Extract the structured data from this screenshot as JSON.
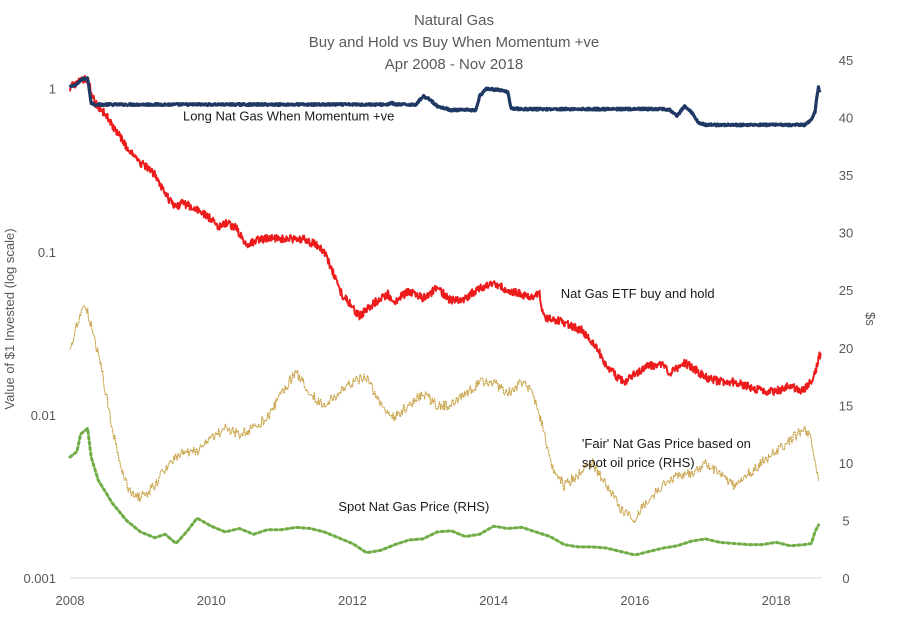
{
  "chart_data": {
    "type": "line",
    "title": [
      "Natural Gas",
      "Buy and Hold vs Buy When Momentum +ve",
      "Apr 2008 - Nov 2018"
    ],
    "xlabel": "",
    "ylabel_left": "Value of $1 Invested (log scale)",
    "ylabel_right": "$s",
    "x_ticks": [
      2008,
      2010,
      2012,
      2014,
      2016,
      2018
    ],
    "xlim": [
      2008,
      2018.65
    ],
    "y_left": {
      "scale": "log",
      "lim": [
        0.001,
        1.5
      ],
      "ticks": [
        0.001,
        0.01,
        0.1,
        1
      ],
      "tick_labels": [
        "0.001",
        "0.01",
        "0.1",
        "1"
      ]
    },
    "y_right": {
      "scale": "linear",
      "lim": [
        0,
        45
      ],
      "ticks": [
        0,
        5,
        10,
        15,
        20,
        25,
        30,
        35,
        40,
        45
      ],
      "tick_labels": [
        "0",
        "5",
        "10",
        "15",
        "20",
        "25",
        "30",
        "35",
        "40",
        "45"
      ]
    },
    "grid": false,
    "legend": "none",
    "series": [
      {
        "name": "Long Nat Gas When Momentum +ve",
        "axis": "left",
        "style": "solid",
        "color": "#1f3864",
        "width": 3.2,
        "noise": 0.012,
        "points": [
          [
            2008.0,
            1.02
          ],
          [
            2008.1,
            1.07
          ],
          [
            2008.18,
            1.15
          ],
          [
            2008.25,
            1.15
          ],
          [
            2008.3,
            0.82
          ],
          [
            2008.35,
            0.8
          ],
          [
            2009.0,
            0.8
          ],
          [
            2011.0,
            0.8
          ],
          [
            2012.5,
            0.8
          ],
          [
            2012.55,
            0.82
          ],
          [
            2012.6,
            0.8
          ],
          [
            2012.9,
            0.8
          ],
          [
            2013.0,
            0.9
          ],
          [
            2013.1,
            0.86
          ],
          [
            2013.2,
            0.78
          ],
          [
            2013.4,
            0.74
          ],
          [
            2013.75,
            0.74
          ],
          [
            2013.8,
            0.9
          ],
          [
            2013.9,
            1.0
          ],
          [
            2014.1,
            0.98
          ],
          [
            2014.2,
            0.95
          ],
          [
            2014.25,
            0.76
          ],
          [
            2014.4,
            0.75
          ],
          [
            2016.4,
            0.75
          ],
          [
            2016.5,
            0.74
          ],
          [
            2016.6,
            0.68
          ],
          [
            2016.7,
            0.78
          ],
          [
            2016.8,
            0.72
          ],
          [
            2016.9,
            0.62
          ],
          [
            2017.0,
            0.6
          ],
          [
            2018.0,
            0.6
          ],
          [
            2018.4,
            0.6
          ],
          [
            2018.45,
            0.62
          ],
          [
            2018.5,
            0.65
          ],
          [
            2018.55,
            0.72
          ],
          [
            2018.58,
            0.9
          ],
          [
            2018.6,
            1.02
          ],
          [
            2018.62,
            0.95
          ]
        ]
      },
      {
        "name": "Nat Gas ETF buy and hold",
        "axis": "left",
        "style": "solid",
        "color": "#ed1c1c",
        "width": 2.0,
        "noise": 0.05,
        "points": [
          [
            2008.0,
            1.02
          ],
          [
            2008.1,
            1.07
          ],
          [
            2008.18,
            1.15
          ],
          [
            2008.25,
            1.15
          ],
          [
            2008.35,
            0.82
          ],
          [
            2008.5,
            0.7
          ],
          [
            2008.65,
            0.55
          ],
          [
            2008.8,
            0.44
          ],
          [
            2009.0,
            0.35
          ],
          [
            2009.2,
            0.3
          ],
          [
            2009.3,
            0.25
          ],
          [
            2009.4,
            0.21
          ],
          [
            2009.5,
            0.19
          ],
          [
            2009.6,
            0.2
          ],
          [
            2009.8,
            0.18
          ],
          [
            2010.0,
            0.16
          ],
          [
            2010.1,
            0.14
          ],
          [
            2010.2,
            0.15
          ],
          [
            2010.35,
            0.14
          ],
          [
            2010.5,
            0.11
          ],
          [
            2010.7,
            0.12
          ],
          [
            2010.9,
            0.12
          ],
          [
            2011.0,
            0.12
          ],
          [
            2011.3,
            0.12
          ],
          [
            2011.5,
            0.11
          ],
          [
            2011.6,
            0.1
          ],
          [
            2011.75,
            0.07
          ],
          [
            2011.85,
            0.055
          ],
          [
            2012.0,
            0.046
          ],
          [
            2012.1,
            0.04
          ],
          [
            2012.2,
            0.045
          ],
          [
            2012.35,
            0.05
          ],
          [
            2012.5,
            0.055
          ],
          [
            2012.6,
            0.05
          ],
          [
            2012.8,
            0.057
          ],
          [
            2013.0,
            0.052
          ],
          [
            2013.2,
            0.06
          ],
          [
            2013.4,
            0.05
          ],
          [
            2013.6,
            0.052
          ],
          [
            2013.8,
            0.06
          ],
          [
            2014.0,
            0.064
          ],
          [
            2014.2,
            0.058
          ],
          [
            2014.4,
            0.055
          ],
          [
            2014.55,
            0.052
          ],
          [
            2014.65,
            0.057
          ],
          [
            2014.7,
            0.04
          ],
          [
            2014.9,
            0.038
          ],
          [
            2015.1,
            0.035
          ],
          [
            2015.25,
            0.033
          ],
          [
            2015.4,
            0.028
          ],
          [
            2015.5,
            0.024
          ],
          [
            2015.6,
            0.02
          ],
          [
            2015.75,
            0.017
          ],
          [
            2015.85,
            0.016
          ],
          [
            2016.0,
            0.018
          ],
          [
            2016.2,
            0.02
          ],
          [
            2016.4,
            0.02
          ],
          [
            2016.5,
            0.018
          ],
          [
            2016.7,
            0.021
          ],
          [
            2016.85,
            0.019
          ],
          [
            2017.0,
            0.017
          ],
          [
            2017.2,
            0.016
          ],
          [
            2017.4,
            0.016
          ],
          [
            2017.6,
            0.015
          ],
          [
            2017.8,
            0.014
          ],
          [
            2018.0,
            0.014
          ],
          [
            2018.2,
            0.015
          ],
          [
            2018.35,
            0.014
          ],
          [
            2018.45,
            0.015
          ],
          [
            2018.55,
            0.018
          ],
          [
            2018.6,
            0.022
          ],
          [
            2018.63,
            0.024
          ]
        ]
      },
      {
        "name": "'Fair' Nat Gas Price based on spot oil price (RHS)",
        "axis": "right",
        "style": "dotted",
        "color": "#c9a44a",
        "width": 1.2,
        "noise": 0.9,
        "points": [
          [
            2008.0,
            20
          ],
          [
            2008.1,
            22
          ],
          [
            2008.2,
            24
          ],
          [
            2008.3,
            22
          ],
          [
            2008.45,
            18
          ],
          [
            2008.6,
            13
          ],
          [
            2008.75,
            9
          ],
          [
            2008.85,
            7.5
          ],
          [
            2009.0,
            7
          ],
          [
            2009.2,
            8
          ],
          [
            2009.4,
            10
          ],
          [
            2009.6,
            11
          ],
          [
            2009.8,
            11
          ],
          [
            2010.0,
            12
          ],
          [
            2010.2,
            13
          ],
          [
            2010.4,
            12.5
          ],
          [
            2010.6,
            13
          ],
          [
            2010.8,
            14
          ],
          [
            2011.0,
            16
          ],
          [
            2011.2,
            18
          ],
          [
            2011.4,
            16
          ],
          [
            2011.6,
            15
          ],
          [
            2011.8,
            16
          ],
          [
            2012.0,
            17
          ],
          [
            2012.2,
            17.5
          ],
          [
            2012.4,
            15
          ],
          [
            2012.6,
            14
          ],
          [
            2012.8,
            15
          ],
          [
            2013.0,
            16
          ],
          [
            2013.2,
            15
          ],
          [
            2013.4,
            15
          ],
          [
            2013.6,
            16
          ],
          [
            2013.8,
            17
          ],
          [
            2014.0,
            17
          ],
          [
            2014.2,
            16
          ],
          [
            2014.4,
            17
          ],
          [
            2014.55,
            16
          ],
          [
            2014.7,
            13
          ],
          [
            2014.8,
            10
          ],
          [
            2014.9,
            9
          ],
          [
            2015.0,
            8
          ],
          [
            2015.2,
            9
          ],
          [
            2015.4,
            10
          ],
          [
            2015.6,
            8
          ],
          [
            2015.8,
            6
          ],
          [
            2016.0,
            5
          ],
          [
            2016.2,
            7
          ],
          [
            2016.4,
            8
          ],
          [
            2016.6,
            9
          ],
          [
            2016.8,
            9
          ],
          [
            2017.0,
            10
          ],
          [
            2017.2,
            9
          ],
          [
            2017.4,
            8
          ],
          [
            2017.6,
            9
          ],
          [
            2017.8,
            10
          ],
          [
            2018.0,
            11
          ],
          [
            2018.2,
            12
          ],
          [
            2018.4,
            13
          ],
          [
            2018.5,
            12
          ],
          [
            2018.6,
            8.5
          ]
        ]
      },
      {
        "name": "Spot Nat Gas Price (RHS)",
        "axis": "right",
        "style": "dotted",
        "color": "#70ad47",
        "width": 3.0,
        "noise": 0,
        "points": [
          [
            2008.0,
            10.5
          ],
          [
            2008.1,
            11
          ],
          [
            2008.15,
            12.5
          ],
          [
            2008.25,
            13
          ],
          [
            2008.3,
            10.5
          ],
          [
            2008.4,
            8.5
          ],
          [
            2008.5,
            7.5
          ],
          [
            2008.6,
            6.5
          ],
          [
            2008.8,
            5
          ],
          [
            2009.0,
            4
          ],
          [
            2009.2,
            3.5
          ],
          [
            2009.35,
            3.8
          ],
          [
            2009.5,
            3
          ],
          [
            2009.65,
            4
          ],
          [
            2009.8,
            5.2
          ],
          [
            2010.0,
            4.5
          ],
          [
            2010.2,
            4
          ],
          [
            2010.4,
            4.3
          ],
          [
            2010.6,
            3.8
          ],
          [
            2010.8,
            4.2
          ],
          [
            2011.0,
            4.2
          ],
          [
            2011.2,
            4.4
          ],
          [
            2011.4,
            4.3
          ],
          [
            2011.6,
            4
          ],
          [
            2011.8,
            3.5
          ],
          [
            2012.0,
            3
          ],
          [
            2012.2,
            2.2
          ],
          [
            2012.4,
            2.4
          ],
          [
            2012.6,
            2.9
          ],
          [
            2012.8,
            3.3
          ],
          [
            2013.0,
            3.4
          ],
          [
            2013.2,
            4
          ],
          [
            2013.4,
            4.1
          ],
          [
            2013.6,
            3.6
          ],
          [
            2013.8,
            3.8
          ],
          [
            2014.0,
            4.5
          ],
          [
            2014.2,
            4.3
          ],
          [
            2014.4,
            4.4
          ],
          [
            2014.6,
            4
          ],
          [
            2014.8,
            3.6
          ],
          [
            2015.0,
            2.9
          ],
          [
            2015.2,
            2.7
          ],
          [
            2015.4,
            2.7
          ],
          [
            2015.6,
            2.6
          ],
          [
            2015.8,
            2.3
          ],
          [
            2016.0,
            2
          ],
          [
            2016.2,
            2.3
          ],
          [
            2016.4,
            2.6
          ],
          [
            2016.6,
            2.8
          ],
          [
            2016.8,
            3.2
          ],
          [
            2017.0,
            3.4
          ],
          [
            2017.2,
            3.1
          ],
          [
            2017.4,
            3.0
          ],
          [
            2017.6,
            2.9
          ],
          [
            2017.8,
            2.9
          ],
          [
            2018.0,
            3.1
          ],
          [
            2018.2,
            2.8
          ],
          [
            2018.4,
            2.9
          ],
          [
            2018.5,
            3
          ],
          [
            2018.55,
            4
          ],
          [
            2018.6,
            4.6
          ]
        ]
      }
    ],
    "annotations": [
      {
        "series": 0,
        "text": "Long Nat Gas When Momentum +ve",
        "x": 2009.6,
        "y": 0.64,
        "axis": "left"
      },
      {
        "series": 1,
        "text": "Nat Gas ETF buy and hold",
        "x": 2014.95,
        "y": 0.052,
        "axis": "left"
      },
      {
        "series": 2,
        "text": [
          "'Fair' Nat Gas Price based on",
          "spot oil price (RHS)"
        ],
        "x": 2015.25,
        "y": 11.3,
        "axis": "right"
      },
      {
        "series": 3,
        "text": "Spot Nat Gas Price (RHS)",
        "x": 2011.8,
        "y": 5.8,
        "axis": "right"
      }
    ]
  }
}
